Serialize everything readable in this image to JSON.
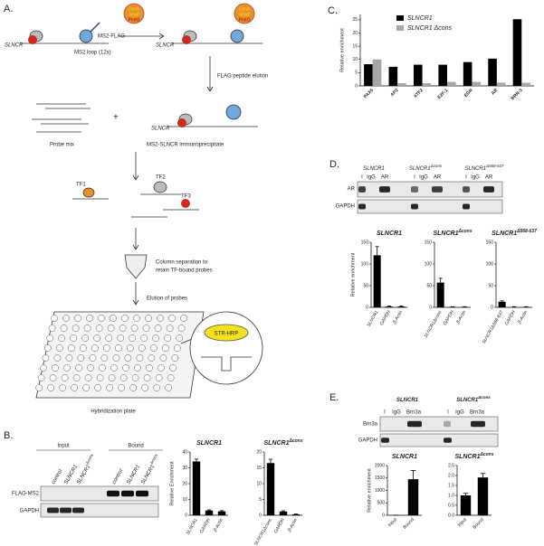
{
  "figure": {
    "panels": [
      "A.",
      "B.",
      "C.",
      "D.",
      "E."
    ],
    "schematic": {
      "slncr": [
        "SLNCR",
        "SLNCR",
        "SLNCR"
      ],
      "ms2_flag": "MS2-FLAG",
      "ms2_loop": "MS2 loop (12x)",
      "beads": [
        {
          "top": "Dyna",
          "bottom": "bead",
          "protg": "ProtG"
        },
        {
          "top": "Dyna",
          "bottom": "bead",
          "protg": "ProtG"
        }
      ],
      "steps": [
        "FLAG peptide elution",
        "Column separation to",
        "retain TF-bound probes",
        "Elution of probes"
      ],
      "probe_mix": "Probe mix",
      "plus": "+",
      "immunoprecipitate": "MS2-SLNCR immunoprecipitate",
      "tfs": [
        "TF1",
        "TF2",
        "TF3"
      ],
      "detection": "STR-HRP",
      "plate": "Hybridization plate"
    },
    "blots": {
      "b": {
        "groups": [
          "Input",
          "Bound"
        ],
        "lanes": [
          {
            "main": "control"
          },
          {
            "main": "SLNCR1"
          },
          {
            "main": "SLNCR1",
            "sup": "Δcons"
          },
          {
            "main": "control"
          },
          {
            "main": "SLNCR1"
          },
          {
            "main": "SLNCR1",
            "sup": "Δcons"
          }
        ],
        "rows": [
          "FLAG-MS2",
          "GAPDH"
        ]
      },
      "d": {
        "headers": [
          {
            "main": "SLNCR1"
          },
          {
            "main": "SLNCR1",
            "sup": "Δcons"
          },
          {
            "main": "SLNCR1",
            "sup": "Δ568-637"
          }
        ],
        "lanes": [
          "I",
          "IgG",
          "AR",
          "I",
          "IgG",
          "AR",
          "I",
          "IgG",
          "AR"
        ],
        "rows": [
          "AR",
          "GAPDH"
        ]
      },
      "e": {
        "headers": [
          {
            "main": "SLNCR1"
          },
          {
            "main": "SLNCR1",
            "sup": "Δcons"
          }
        ],
        "lanes": [
          "I",
          "IgG",
          "Brn3a",
          "I",
          "IgG",
          "Brn3a"
        ],
        "rows": [
          "Brn3a",
          "GAPDH"
        ]
      }
    }
  },
  "chart_data": [
    {
      "type": "grouped-bar",
      "ylabel": "Relative enrichment",
      "legend": "top-left",
      "categories": [
        "PAX5",
        "AP2",
        "ATF2",
        "E2F-1",
        "EGR",
        "AR",
        "BRN-3"
      ],
      "series": [
        {
          "name": "SLNCR1",
          "color": "#000000",
          "values": [
            8.2,
            7.2,
            8,
            8,
            9,
            10.3,
            25.2
          ]
        },
        {
          "name": "SLNCR1 Δcons",
          "color": "#a6a6a6",
          "values": [
            10,
            1,
            1,
            1.5,
            1.5,
            1.2,
            1.2
          ]
        }
      ],
      "ylim": [
        0,
        27
      ],
      "yticks": [
        0,
        5,
        10,
        15,
        20,
        25
      ]
    },
    {
      "type": "bar",
      "title": "SLNCR1",
      "ylabel": "Relative Enrichment",
      "color": "#000000",
      "categories": [
        "SLNCR1",
        "GAPDH",
        "β-Actin"
      ],
      "values": [
        34,
        3,
        2.5
      ],
      "errors": [
        1.5,
        0.4,
        0.4
      ],
      "ylim": [
        0,
        40
      ],
      "yticks": [
        0,
        10,
        20,
        30,
        40
      ]
    },
    {
      "type": "bar",
      "title": "SLNCR1",
      "title_sup": "Δcons",
      "color": "#000000",
      "categories": [
        "SLNCR1Δcons",
        "GAPDH",
        "β-Actin"
      ],
      "values": [
        16.5,
        1.2,
        0.3
      ],
      "errors": [
        1.2,
        0.2,
        0.1
      ],
      "ylim": [
        0,
        20
      ],
      "yticks": [
        0,
        5,
        10,
        15,
        20
      ]
    },
    {
      "type": "bar",
      "title": "SLNCR1",
      "ylabel": "Relative enrichment",
      "color": "#000000",
      "categories": [
        "SLNCR1",
        "GAPDH",
        "β-Actin"
      ],
      "values": [
        120,
        2,
        2
      ],
      "errors": [
        20,
        1,
        1
      ],
      "ylim": [
        0,
        150
      ],
      "yticks": [
        0,
        50,
        100,
        150
      ]
    },
    {
      "type": "bar",
      "title": "SLNCR1",
      "title_sup": "Δcons",
      "color": "#000000",
      "categories": [
        "SLNCR1Δcons",
        "GAPDH",
        "β-Actin"
      ],
      "values": [
        57,
        1,
        1
      ],
      "errors": [
        10,
        0.5,
        0.5
      ],
      "ylim": [
        0,
        150
      ],
      "yticks": [
        0,
        50,
        100,
        150
      ]
    },
    {
      "type": "bar",
      "title": "SLNCR1",
      "title_sup": "Δ568-637",
      "color": "#000000",
      "categories": [
        "SLNCR1Δ568-637",
        "GAPDH",
        "β-Actin"
      ],
      "values": [
        13,
        1,
        1
      ],
      "errors": [
        2,
        0.5,
        0.5
      ],
      "ylim": [
        0,
        150
      ],
      "yticks": [
        0,
        50,
        100,
        150
      ]
    },
    {
      "type": "bar",
      "title": "SLNCR1",
      "ylabel": "Relative enrichment",
      "color": "#000000",
      "categories": [
        "Input",
        "Bound"
      ],
      "values": [
        1,
        1450
      ],
      "errors": [
        0,
        350
      ],
      "ylim": [
        0,
        2000
      ],
      "yticks": [
        0,
        500,
        1000,
        1500,
        2000
      ]
    },
    {
      "type": "bar",
      "title": "SLNCR1",
      "title_sup": "Δcons",
      "color": "#000000",
      "categories": [
        "Input",
        "Bound"
      ],
      "values": [
        1.0,
        1.9
      ],
      "errors": [
        0.1,
        0.2
      ],
      "ylim": [
        0,
        2.5
      ],
      "yticks": [
        {
          "value": 0,
          "label": "0.0"
        },
        0.5,
        {
          "value": 1,
          "label": "1.0"
        },
        1.5,
        {
          "value": 2,
          "label": "2.0"
        },
        2.5
      ]
    }
  ]
}
